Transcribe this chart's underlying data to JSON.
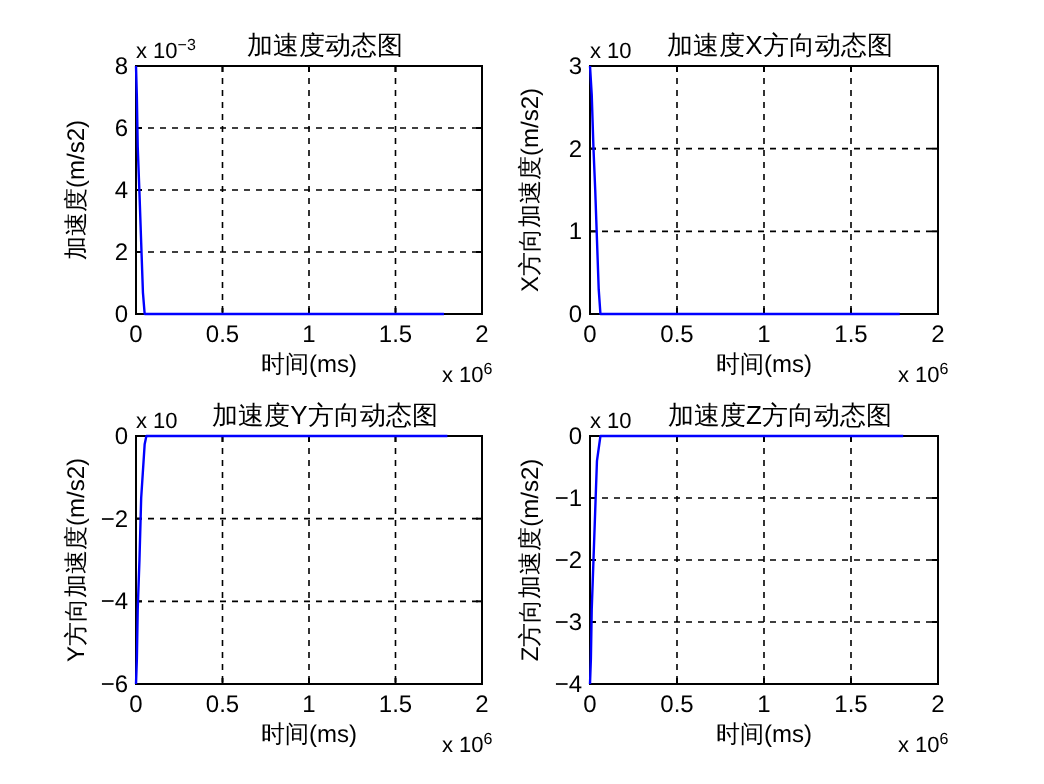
{
  "chart_data": [
    {
      "type": "line",
      "title": "加速度动态图",
      "xlabel": "时间(ms)",
      "ylabel": "加速度(m/s2)",
      "annotations": [
        "x 10$^{−3}$",
        "x 10$^{6}$"
      ],
      "xlim": [
        0,
        2
      ],
      "ylim": [
        0,
        8
      ],
      "xticks": [
        0,
        0.5,
        1,
        1.5,
        2
      ],
      "yticks": [
        0,
        2,
        4,
        6,
        8
      ],
      "grid": true,
      "line_style": "solid",
      "series": [
        {
          "color": "#0000ff",
          "x": [
            0,
            0.005,
            0.01,
            0.02,
            0.03,
            0.04,
            0.05,
            1.78
          ],
          "values": [
            8,
            7,
            5.4,
            3.9,
            2.3,
            0.7,
            0,
            0
          ]
        }
      ]
    },
    {
      "type": "line",
      "title": "加速度X方向动态图",
      "xlabel": "时间(ms)",
      "ylabel": "X方向加速度(m/s2)",
      "annotations": [
        "x 10",
        "x 10$^{6}$"
      ],
      "xlim": [
        0,
        2
      ],
      "ylim": [
        0,
        3
      ],
      "xticks": [
        0,
        0.5,
        1,
        1.5,
        2
      ],
      "yticks": [
        0,
        1,
        2,
        3
      ],
      "grid": true,
      "line_style": "solid",
      "series": [
        {
          "color": "#0000ff",
          "x": [
            0,
            0.01,
            0.02,
            0.03,
            0.04,
            0.05,
            0.06,
            1.78
          ],
          "values": [
            3,
            2.65,
            2,
            1.5,
            0.9,
            0.3,
            0,
            0
          ]
        }
      ]
    },
    {
      "type": "line",
      "title": "加速度Y方向动态图",
      "xlabel": "时间(ms)",
      "ylabel": "Y方向加速度(m/s2)",
      "annotations": [
        "x 10",
        "x 10$^{6}$"
      ],
      "xlim": [
        0,
        2
      ],
      "ylim": [
        -6,
        0
      ],
      "xticks": [
        0,
        0.5,
        1,
        1.5,
        2
      ],
      "yticks": [
        -6,
        -4,
        -2,
        0
      ],
      "grid": true,
      "line_style": "solid",
      "series": [
        {
          "color": "#0000ff",
          "x": [
            0,
            0.005,
            0.01,
            0.02,
            0.03,
            0.05,
            0.06,
            1.8
          ],
          "values": [
            -6,
            -5.4,
            -4.2,
            -3,
            -1.5,
            -0.2,
            0,
            0
          ]
        }
      ]
    },
    {
      "type": "line",
      "title": "加速度Z方向动态图",
      "xlabel": "时间(ms)",
      "ylabel": "Z方向加速度(m/s2)",
      "annotations": [
        "x 10",
        "x 10$^{6}$"
      ],
      "xlim": [
        0,
        2
      ],
      "ylim": [
        -4,
        0
      ],
      "xticks": [
        0,
        0.5,
        1,
        1.5,
        2
      ],
      "yticks": [
        -4,
        -3,
        -2,
        -1,
        0
      ],
      "grid": true,
      "line_style": "solid",
      "series": [
        {
          "color": "#0000ff",
          "x": [
            0,
            0.005,
            0.01,
            0.02,
            0.03,
            0.04,
            0.06,
            1.8
          ],
          "values": [
            -4,
            -3.6,
            -2.8,
            -2,
            -1.2,
            -0.4,
            0,
            0
          ]
        }
      ]
    }
  ]
}
